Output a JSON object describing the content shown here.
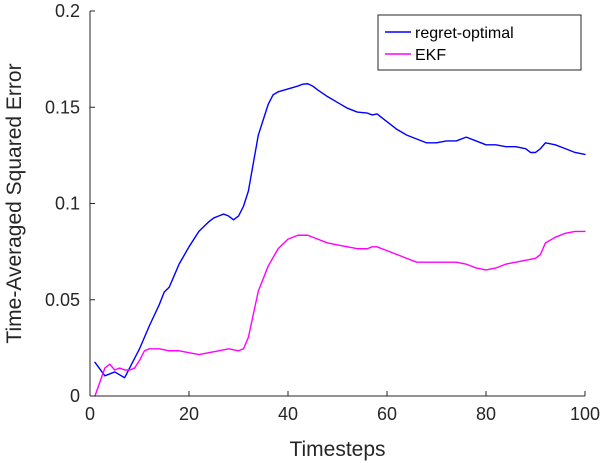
{
  "chart_data": {
    "type": "line",
    "title": "",
    "xlabel": "Timesteps",
    "ylabel": "Time-Averaged Squared Error",
    "xlim": [
      0,
      100
    ],
    "ylim": [
      0,
      0.2
    ],
    "xticks": [
      0,
      20,
      40,
      60,
      80,
      100
    ],
    "xtick_labels": [
      "0",
      "20",
      "40",
      "60",
      "80",
      "100"
    ],
    "yticks": [
      0,
      0.05,
      0.1,
      0.15,
      0.2
    ],
    "ytick_labels": [
      "0",
      "0.05",
      "0.1",
      "0.15",
      "0.2"
    ],
    "grid": false,
    "legend_position": "top-right",
    "series": [
      {
        "name": "regret-optimal",
        "color": "#0000ff",
        "x": [
          1,
          3,
          5,
          7,
          8,
          10,
          12,
          14,
          15,
          16,
          17,
          18,
          20,
          22,
          24,
          25,
          26,
          27,
          28,
          29,
          30,
          31,
          32,
          34,
          36,
          37,
          38,
          40,
          42,
          43,
          44,
          45,
          46,
          48,
          50,
          52,
          54,
          56,
          57,
          58,
          60,
          62,
          64,
          66,
          68,
          70,
          72,
          74,
          76,
          78,
          80,
          82,
          84,
          86,
          88,
          89,
          90,
          91,
          92,
          94,
          96,
          98,
          100
        ],
        "y": [
          0.0175,
          0.0105,
          0.0125,
          0.0095,
          0.0145,
          0.0245,
          0.0365,
          0.0475,
          0.054,
          0.0565,
          0.0625,
          0.0685,
          0.0775,
          0.0855,
          0.0905,
          0.0925,
          0.0935,
          0.0945,
          0.0935,
          0.0915,
          0.0935,
          0.0985,
          0.1065,
          0.1355,
          0.1515,
          0.1565,
          0.158,
          0.1595,
          0.161,
          0.162,
          0.1622,
          0.161,
          0.159,
          0.1555,
          0.1525,
          0.1495,
          0.1475,
          0.147,
          0.146,
          0.1465,
          0.1425,
          0.1385,
          0.1355,
          0.1335,
          0.1315,
          0.1315,
          0.1325,
          0.1325,
          0.1345,
          0.1325,
          0.1305,
          0.1305,
          0.1295,
          0.1295,
          0.1285,
          0.1265,
          0.1265,
          0.1285,
          0.1315,
          0.1305,
          0.1285,
          0.1265,
          0.1255
        ]
      },
      {
        "name": "EKF",
        "color": "#ff00ff",
        "x": [
          1,
          3,
          4,
          5,
          6,
          7,
          8,
          9,
          10,
          11,
          12,
          14,
          16,
          18,
          20,
          22,
          24,
          26,
          28,
          30,
          31,
          32,
          34,
          36,
          38,
          40,
          42,
          44,
          46,
          48,
          50,
          52,
          54,
          56,
          57,
          58,
          60,
          62,
          64,
          66,
          68,
          70,
          72,
          74,
          76,
          78,
          80,
          82,
          84,
          86,
          88,
          90,
          91,
          92,
          94,
          96,
          98,
          100
        ],
        "y": [
          0.0,
          0.0145,
          0.0165,
          0.0135,
          0.0145,
          0.0135,
          0.0135,
          0.0145,
          0.0185,
          0.0235,
          0.0245,
          0.0245,
          0.0235,
          0.0235,
          0.0225,
          0.0215,
          0.0225,
          0.0235,
          0.0245,
          0.0235,
          0.0245,
          0.0305,
          0.0545,
          0.0675,
          0.0765,
          0.0815,
          0.0835,
          0.0835,
          0.0815,
          0.0795,
          0.0785,
          0.0775,
          0.0765,
          0.0765,
          0.0775,
          0.0775,
          0.0755,
          0.0735,
          0.0715,
          0.0695,
          0.0695,
          0.0695,
          0.0695,
          0.0695,
          0.0685,
          0.0665,
          0.0655,
          0.0665,
          0.0685,
          0.0695,
          0.0705,
          0.0715,
          0.0735,
          0.0795,
          0.0825,
          0.0845,
          0.0855,
          0.0855
        ]
      }
    ]
  }
}
